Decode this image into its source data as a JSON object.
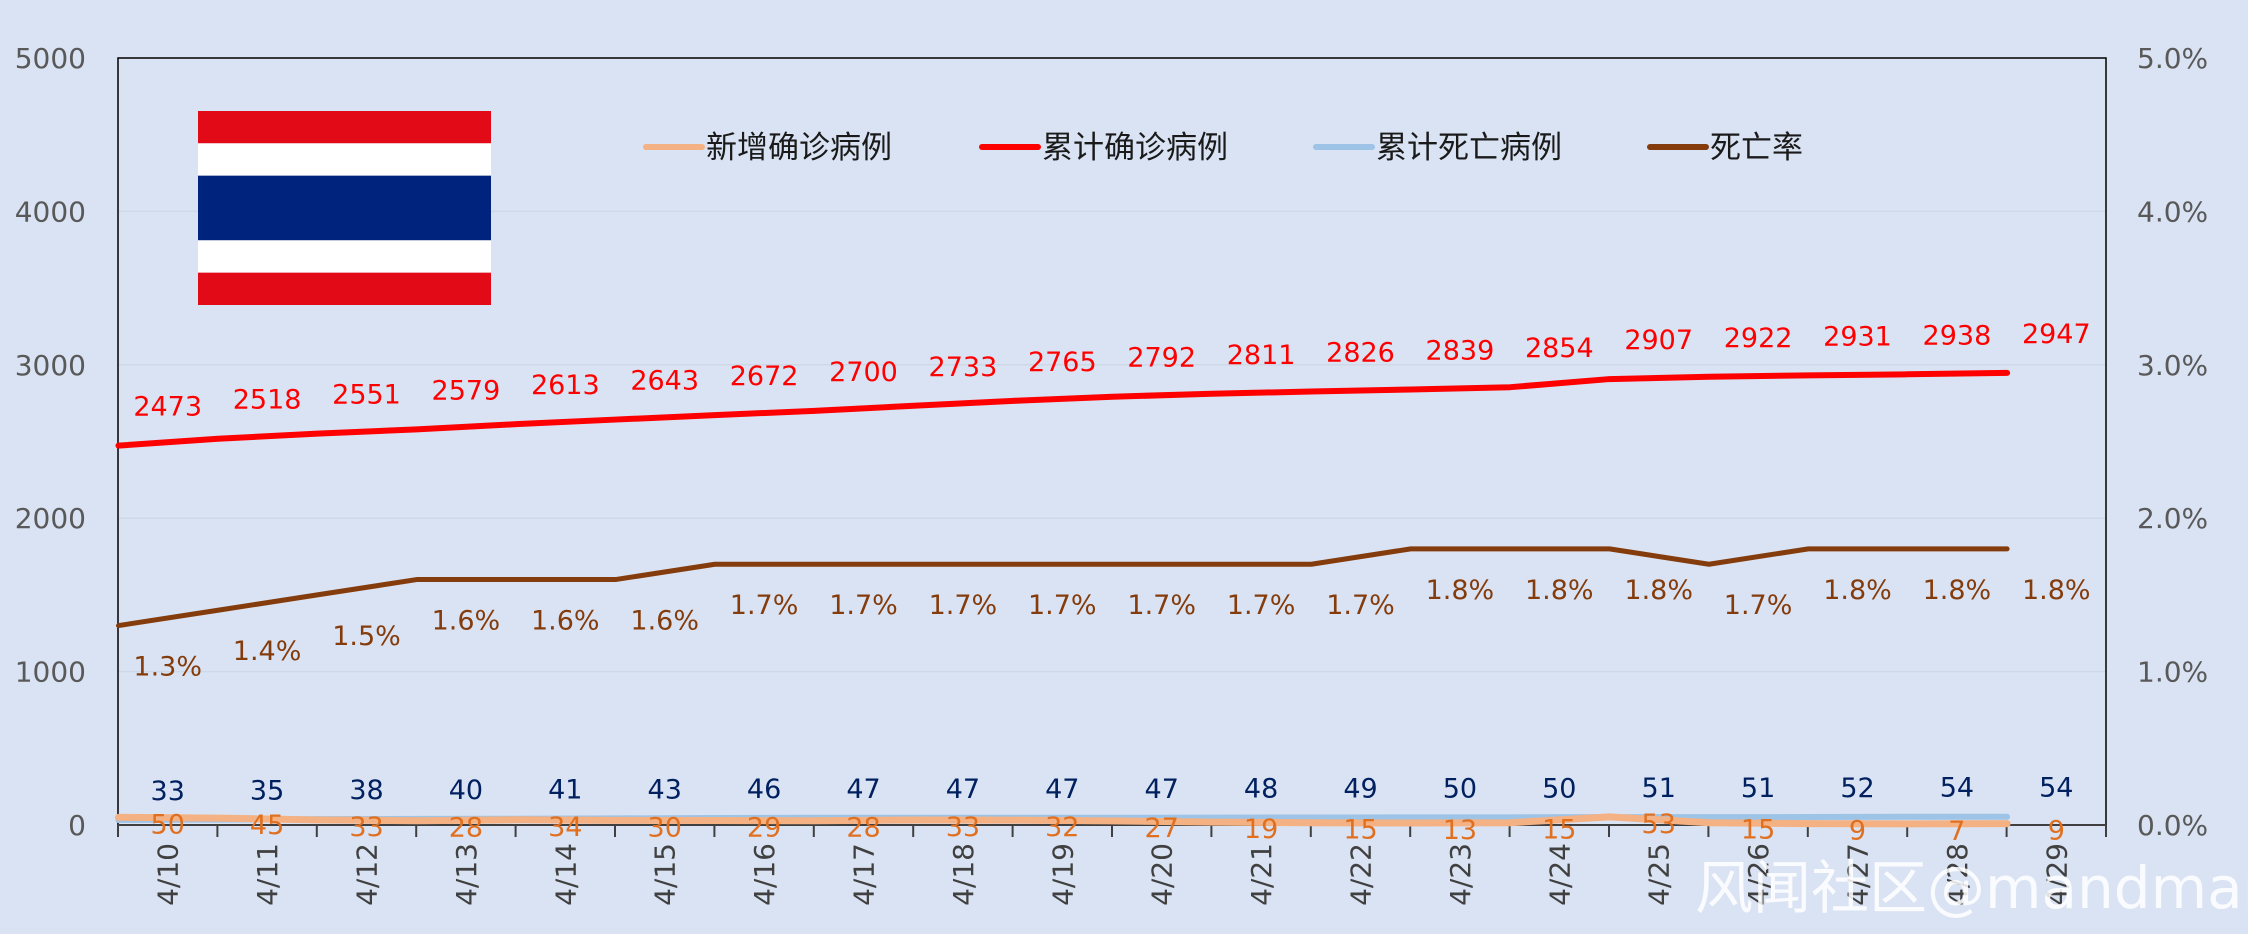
{
  "chart_data": {
    "type": "line",
    "categories": [
      "4/10",
      "4/11",
      "4/12",
      "4/13",
      "4/14",
      "4/15",
      "4/16",
      "4/17",
      "4/18",
      "4/19",
      "4/20",
      "4/21",
      "4/22",
      "4/23",
      "4/24",
      "4/25",
      "4/26",
      "4/27",
      "4/28",
      "4/29"
    ],
    "series": [
      {
        "name": "新增确诊病例",
        "axis": "left",
        "color": "#f4b183",
        "values": [
          50,
          45,
          33,
          28,
          34,
          30,
          29,
          28,
          33,
          32,
          27,
          19,
          15,
          13,
          15,
          53,
          15,
          9,
          7,
          9
        ]
      },
      {
        "name": "累计确诊病例",
        "axis": "left",
        "color": "#ff0000",
        "values": [
          2473,
          2518,
          2551,
          2579,
          2613,
          2643,
          2672,
          2700,
          2733,
          2765,
          2792,
          2811,
          2826,
          2839,
          2854,
          2907,
          2922,
          2931,
          2938,
          2947
        ]
      },
      {
        "name": "累计死亡病例",
        "axis": "left",
        "color": "#9dc3e6",
        "values": [
          33,
          35,
          38,
          40,
          41,
          43,
          46,
          47,
          47,
          47,
          47,
          48,
          49,
          50,
          50,
          51,
          51,
          52,
          54,
          54
        ]
      },
      {
        "name": "死亡率",
        "axis": "right",
        "color": "#843c0c",
        "values": [
          1.3,
          1.4,
          1.5,
          1.6,
          1.6,
          1.6,
          1.7,
          1.7,
          1.7,
          1.7,
          1.7,
          1.7,
          1.7,
          1.8,
          1.8,
          1.8,
          1.7,
          1.8,
          1.8,
          1.8
        ],
        "labels": [
          "1.3%",
          "1.4%",
          "1.5%",
          "1.6%",
          "1.6%",
          "1.6%",
          "1.7%",
          "1.7%",
          "1.7%",
          "1.7%",
          "1.7%",
          "1.7%",
          "1.7%",
          "1.8%",
          "1.8%",
          "1.8%",
          "1.7%",
          "1.8%",
          "1.8%",
          "1.8%"
        ]
      }
    ],
    "ylim_left": [
      0,
      5000
    ],
    "yticks_left": [
      "0",
      "1000",
      "2000",
      "3000",
      "4000",
      "5000"
    ],
    "ylim_right": [
      0,
      5.0
    ],
    "yticks_right": [
      "0.0%",
      "1.0%",
      "2.0%",
      "3.0%",
      "4.0%",
      "5.0%"
    ],
    "legend_position": "top-center",
    "grid": true
  },
  "flag": {
    "name": "Thailand",
    "colors": [
      "#e30a17",
      "#ffffff",
      "#00247d",
      "#ffffff",
      "#e30a17"
    ]
  },
  "watermark": "风闻社区@mandman"
}
